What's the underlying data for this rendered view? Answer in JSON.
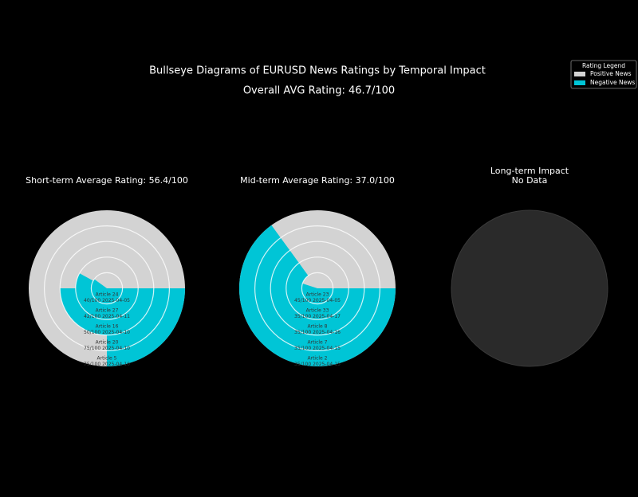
{
  "chart_data": {
    "type": "bullseye",
    "title": "Bullseye Diagrams of EURUSD News Ratings by Temporal Impact",
    "subtitle": "Overall AVG Rating: 46.7/100",
    "legend": {
      "title": "Rating Legend",
      "position": "upper right",
      "entries": [
        {
          "name": "Positive News",
          "color": "#d3d3d3"
        },
        {
          "name": "Negative News",
          "color": "#00c5d6"
        }
      ]
    },
    "ratinglim": [
      0,
      100
    ],
    "panels": [
      {
        "title": "Short-term Average Rating: 56.4/100",
        "articles": [
          {
            "name": "Article 24",
            "rating": 40,
            "rating_label": "40/100",
            "date": "2025-04-05"
          },
          {
            "name": "Article 27",
            "rating": 42,
            "rating_label": "42/100",
            "date": "2025-04-11"
          },
          {
            "name": "Article 16",
            "rating": 50,
            "rating_label": "50/100",
            "date": "2025-04-10"
          },
          {
            "name": "Article 20",
            "rating": 75,
            "rating_label": "75/100",
            "date": "2025-04-10"
          },
          {
            "name": "Article 5",
            "rating": 75,
            "rating_label": "75/100",
            "date": "2025-04-10"
          }
        ]
      },
      {
        "title": "Mid-term Average Rating: 37.0/100",
        "articles": [
          {
            "name": "Article 23",
            "rating": 45,
            "rating_label": "45/100",
            "date": "2025-04-05"
          },
          {
            "name": "Article 33",
            "rating": 35,
            "rating_label": "35/100",
            "date": "2025-04-17"
          },
          {
            "name": "Article 8",
            "rating": 35,
            "rating_label": "35/100",
            "date": "2025-04-16"
          },
          {
            "name": "Article 7",
            "rating": 35,
            "rating_label": "35/100",
            "date": "2025-04-15"
          },
          {
            "name": "Article 2",
            "rating": 35,
            "rating_label": "35/100",
            "date": "2025-04-15"
          }
        ]
      },
      {
        "title": "Long-term Impact",
        "subtitle": "No Data",
        "articles": []
      }
    ]
  }
}
